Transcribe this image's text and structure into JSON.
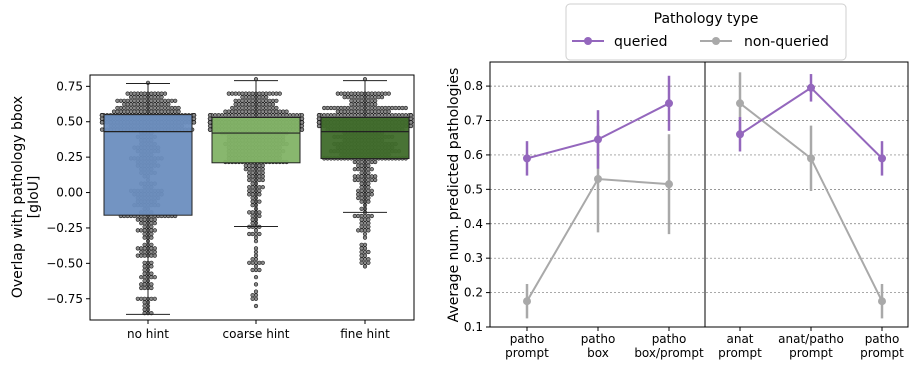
{
  "chart_data": [
    {
      "type": "box",
      "ylabel": "Overlap with pathology bbox\n[gIoU]",
      "xlabel": "",
      "categories": [
        "no hint",
        "coarse hint",
        "fine hint"
      ],
      "yticks": [
        "−0.75",
        "−0.50",
        "−0.25",
        "0.00",
        "0.25",
        "0.50",
        "0.75"
      ],
      "ylim": [
        -0.9,
        0.83
      ],
      "colors": [
        "#6c8ebf",
        "#82b366",
        "#3f6b2a"
      ],
      "boxes": [
        {
          "whisker_low": -0.86,
          "q1": -0.16,
          "median": 0.43,
          "q3": 0.55,
          "whisker_high": 0.77,
          "min": -0.86,
          "max": 0.77
        },
        {
          "whisker_low": -0.24,
          "q1": 0.21,
          "median": 0.42,
          "q3": 0.53,
          "whisker_high": 0.79,
          "min": -0.79,
          "max": 0.79
        },
        {
          "whisker_low": -0.14,
          "q1": 0.24,
          "median": 0.43,
          "q3": 0.53,
          "whisker_high": 0.79,
          "min": -0.52,
          "max": 0.79
        }
      ]
    },
    {
      "type": "line",
      "ylabel": "Average num. predicted pathologies",
      "legend": {
        "title": "Pathology type",
        "placement": "top-center",
        "entries": [
          "queried",
          "non-queried"
        ]
      },
      "colors": {
        "queried": "#9467bd",
        "non-queried": "#a9a9a9"
      },
      "yticks": [
        "0.1",
        "0.2",
        "0.3",
        "0.4",
        "0.5",
        "0.6",
        "0.7",
        "0.8"
      ],
      "ylim": [
        0.1,
        0.87
      ],
      "grid": true,
      "panels": [
        {
          "categories": [
            "patho\nprompt",
            "patho\nbox",
            "patho\nbox/prompt"
          ],
          "series": [
            {
              "name": "queried",
              "values": [
                0.59,
                0.645,
                0.75
              ],
              "err_low": [
                0.54,
                0.56,
                0.67
              ],
              "err_high": [
                0.64,
                0.73,
                0.83
              ]
            },
            {
              "name": "non-queried",
              "values": [
                0.175,
                0.53,
                0.515
              ],
              "err_low": [
                0.125,
                0.375,
                0.37
              ],
              "err_high": [
                0.225,
                0.685,
                0.66
              ]
            }
          ]
        },
        {
          "categories": [
            "anat\nprompt",
            "anat/patho\nprompt",
            "patho\nprompt"
          ],
          "series": [
            {
              "name": "queried",
              "values": [
                0.66,
                0.795,
                0.59
              ],
              "err_low": [
                0.61,
                0.755,
                0.54
              ],
              "err_high": [
                0.71,
                0.835,
                0.64
              ]
            },
            {
              "name": "non-queried",
              "values": [
                0.75,
                0.59,
                0.175
              ],
              "err_low": [
                0.66,
                0.495,
                0.125
              ],
              "err_high": [
                0.84,
                0.685,
                0.225
              ]
            }
          ]
        }
      ]
    }
  ]
}
